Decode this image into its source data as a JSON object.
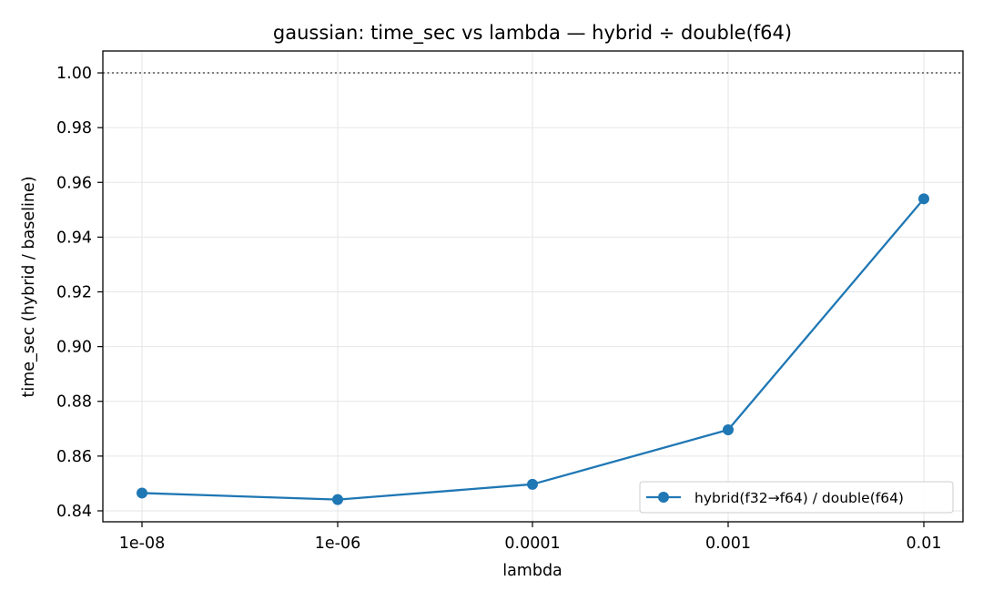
{
  "chart_data": {
    "type": "line",
    "title": "gaussian: time_sec vs lambda — hybrid ÷ double(f64)",
    "xlabel": "lambda",
    "ylabel": "time_sec (hybrid / baseline)",
    "categories": [
      "1e-08",
      "1e-06",
      "0.0001",
      "0.001",
      "0.01"
    ],
    "series": [
      {
        "name": "hybrid(f32→f64) / double(f64)",
        "values": [
          0.8465,
          0.8441,
          0.8497,
          0.8696,
          0.954
        ],
        "color": "#1f77b4",
        "marker": "circle"
      }
    ],
    "reference_line": {
      "y": 1.0,
      "style": "dotted",
      "color": "#808080"
    },
    "ylim": [
      0.836,
      1.008
    ],
    "yticks": [
      0.84,
      0.86,
      0.88,
      0.9,
      0.92,
      0.94,
      0.96,
      0.98,
      1.0
    ],
    "ytick_labels": [
      "0.84",
      "0.86",
      "0.88",
      "0.90",
      "0.92",
      "0.94",
      "0.96",
      "0.98",
      "1.00"
    ],
    "grid": true,
    "legend_position": "lower-right"
  }
}
